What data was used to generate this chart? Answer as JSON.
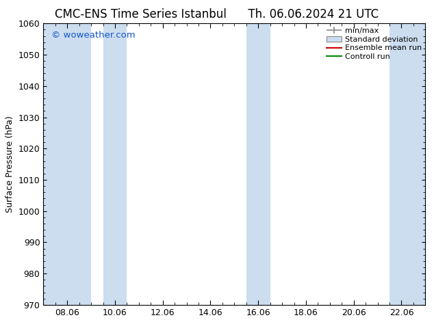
{
  "title_left": "CMC-ENS Time Series Istanbul",
  "title_right": "Th. 06.06.2024 21 UTC",
  "ylabel": "Surface Pressure (hPa)",
  "ylim": [
    970,
    1060
  ],
  "yticks": [
    970,
    980,
    990,
    1000,
    1010,
    1020,
    1030,
    1040,
    1050,
    1060
  ],
  "xtick_labels": [
    "08.06",
    "10.06",
    "12.06",
    "14.06",
    "16.06",
    "18.06",
    "20.06",
    "22.06"
  ],
  "watermark": "© woweather.com",
  "watermark_color": "#1155cc",
  "bg_color": "#ffffff",
  "plot_bg_color": "#ffffff",
  "band_color": "#ccddf0",
  "legend_labels": [
    "min/max",
    "Standard deviation",
    "Ensemble mean run",
    "Controll run"
  ],
  "title_fontsize": 12,
  "tick_fontsize": 9,
  "ylabel_fontsize": 9
}
